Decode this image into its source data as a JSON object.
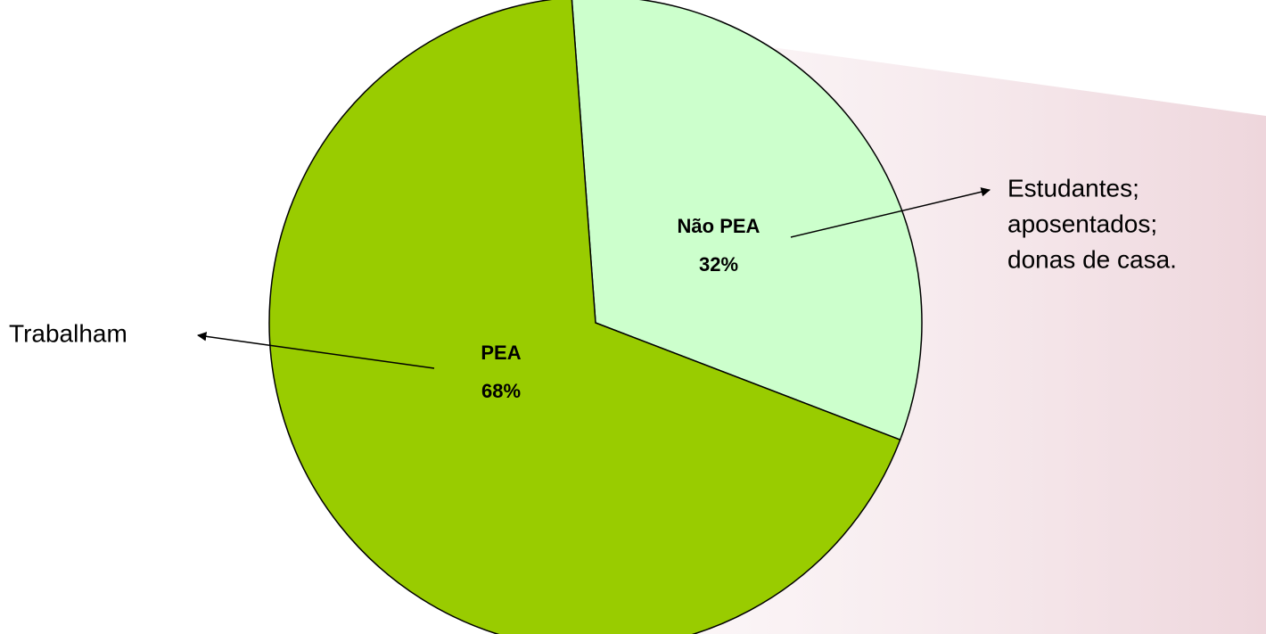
{
  "chart_data": {
    "type": "pie",
    "categories": [
      "Não PEA",
      "PEA"
    ],
    "values": [
      32,
      68
    ],
    "value_labels": [
      "32%",
      "68%"
    ],
    "colors": [
      "#ccffcc",
      "#99cc00"
    ],
    "annotations": [
      {
        "lines": [
          "Estudantes;",
          "aposentados;",
          "donas de casa."
        ]
      },
      {
        "lines": [
          "Trabalham"
        ]
      }
    ]
  }
}
